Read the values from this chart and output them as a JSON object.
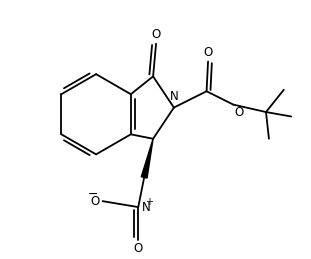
{
  "background": "#ffffff",
  "line_color": "#000000",
  "lw": 1.3,
  "figsize": [
    3.11,
    2.59
  ],
  "dpi": 100,
  "xlim": [
    -4.5,
    5.5
  ],
  "ylim": [
    -4.5,
    4.0
  ]
}
